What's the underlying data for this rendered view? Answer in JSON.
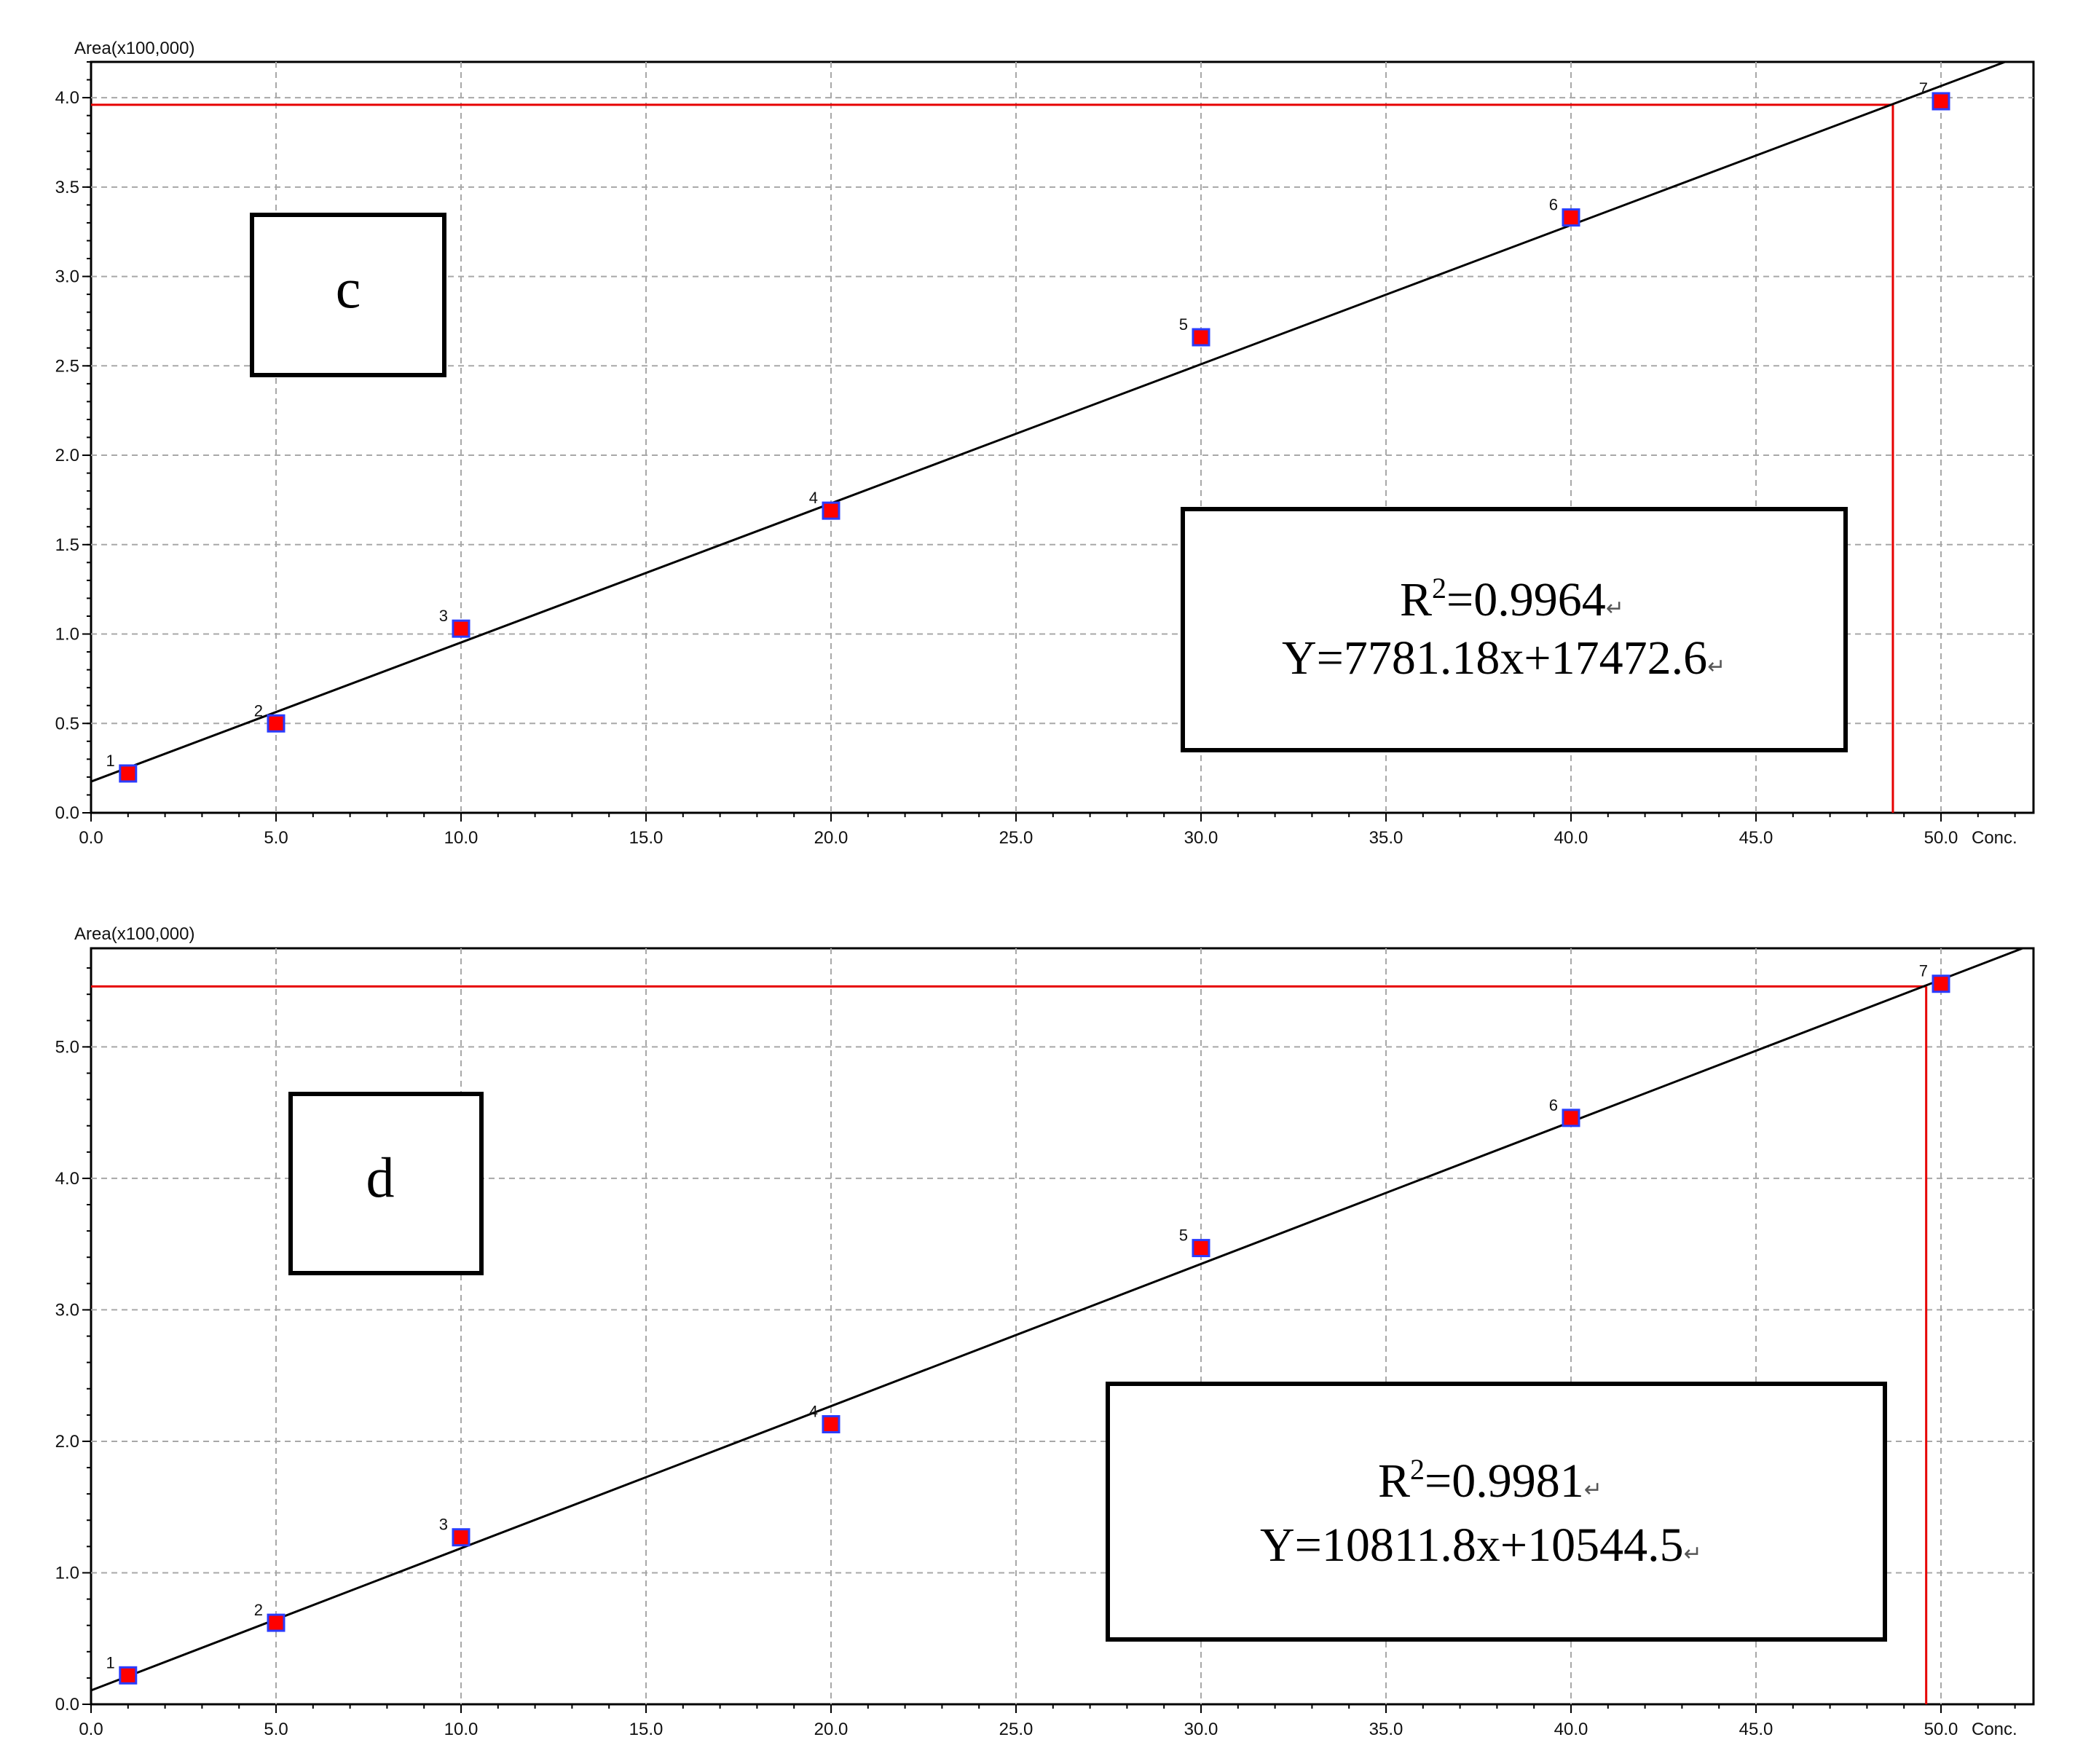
{
  "chart_data": [
    {
      "type": "scatter",
      "panel_letter": "c",
      "ylabel": "Area(x100,000)",
      "xlabel": "Conc.",
      "xlim": [
        0,
        52.5
      ],
      "ylim": [
        0,
        4.2
      ],
      "x_ticks": [
        "0.0",
        "5.0",
        "10.0",
        "15.0",
        "20.0",
        "25.0",
        "30.0",
        "35.0",
        "40.0",
        "45.0",
        "50.0"
      ],
      "y_ticks": [
        "0.0",
        "0.5",
        "1.0",
        "1.5",
        "2.0",
        "2.5",
        "3.0",
        "3.5",
        "4.0"
      ],
      "y_tick_values": [
        0,
        0.5,
        1.0,
        1.5,
        2.0,
        2.5,
        3.0,
        3.5,
        4.0
      ],
      "grid": true,
      "points": [
        {
          "label": "1",
          "x": 1,
          "y": 0.22
        },
        {
          "label": "2",
          "x": 5,
          "y": 0.5
        },
        {
          "label": "3",
          "x": 10,
          "y": 1.03
        },
        {
          "label": "4",
          "x": 20,
          "y": 1.69
        },
        {
          "label": "5",
          "x": 30,
          "y": 2.66
        },
        {
          "label": "6",
          "x": 40,
          "y": 3.33
        },
        {
          "label": "7",
          "x": 50,
          "y": 3.98
        }
      ],
      "fit": {
        "slope": 7781.18,
        "intercept": 17472.6,
        "scale": 100000
      },
      "crosshair": {
        "x": 48.7,
        "y": 3.96
      },
      "r2_prefix": "R",
      "r2_sup": "2",
      "r2_value": "=0.9964",
      "equation": "Y=7781.18x+17472.6",
      "return_glyph": "↵",
      "colors": {
        "marker_fill": "#ff0000",
        "marker_edge": "#2a3cff",
        "crosshair": "#e60000",
        "fit": "#000000",
        "grid": "#a8a8a8"
      }
    },
    {
      "type": "scatter",
      "panel_letter": "d",
      "ylabel": "Area(x100,000)",
      "xlabel": "Conc.",
      "xlim": [
        0,
        52.5
      ],
      "ylim": [
        0,
        5.75
      ],
      "x_ticks": [
        "0.0",
        "5.0",
        "10.0",
        "15.0",
        "20.0",
        "25.0",
        "30.0",
        "35.0",
        "40.0",
        "45.0",
        "50.0"
      ],
      "y_ticks": [
        "0.0",
        "1.0",
        "2.0",
        "3.0",
        "4.0",
        "5.0"
      ],
      "y_tick_values": [
        0,
        1.0,
        2.0,
        3.0,
        4.0,
        5.0
      ],
      "grid": true,
      "points": [
        {
          "label": "1",
          "x": 1,
          "y": 0.22
        },
        {
          "label": "2",
          "x": 5,
          "y": 0.62
        },
        {
          "label": "3",
          "x": 10,
          "y": 1.27
        },
        {
          "label": "4",
          "x": 20,
          "y": 2.13
        },
        {
          "label": "5",
          "x": 30,
          "y": 3.47
        },
        {
          "label": "6",
          "x": 40,
          "y": 4.46
        },
        {
          "label": "7",
          "x": 50,
          "y": 5.48
        }
      ],
      "fit": {
        "slope": 10811.8,
        "intercept": 10544.5,
        "scale": 100000
      },
      "crosshair": {
        "x": 49.6,
        "y": 5.46
      },
      "r2_prefix": "R",
      "r2_sup": "2",
      "r2_value": "=0.9981",
      "equation": "Y=10811.8x+10544.5",
      "return_glyph": "↵",
      "colors": {
        "marker_fill": "#ff0000",
        "marker_edge": "#2a3cff",
        "crosshair": "#e60000",
        "fit": "#000000",
        "grid": "#a8a8a8"
      }
    }
  ]
}
